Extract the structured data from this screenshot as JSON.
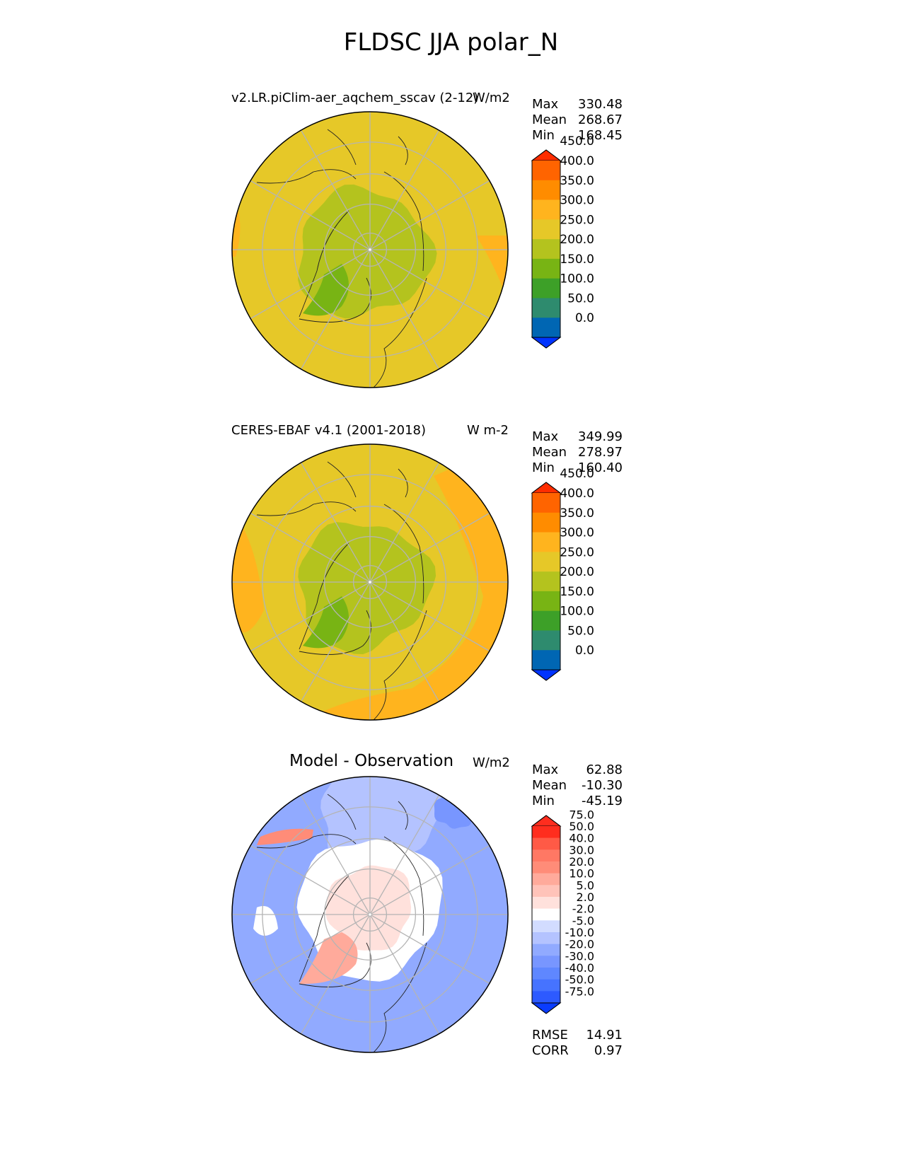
{
  "title": "FLDSC JJA polar_N",
  "stat_labels": {
    "max": "Max",
    "mean": "Mean",
    "min": "Min",
    "rmse": "RMSE",
    "corr": "CORR"
  },
  "panels": [
    {
      "subtitle": "v2.LR.piClim-aer_aqchem_sscav (2-12)",
      "units": "W/m2",
      "stats": {
        "max": "330.48",
        "mean": "268.67",
        "min": "168.45"
      },
      "colorbar": {
        "levels": [
          "0.0",
          "50.0",
          "100.0",
          "150.0",
          "200.0",
          "250.0",
          "300.0",
          "350.0",
          "400.0",
          "450.0"
        ]
      }
    },
    {
      "subtitle": "CERES-EBAF v4.1 (2001-2018)",
      "units": "W m-2",
      "stats": {
        "max": "349.99",
        "mean": "278.97",
        "min": "160.40"
      },
      "colorbar": {
        "levels": [
          "0.0",
          "50.0",
          "100.0",
          "150.0",
          "200.0",
          "250.0",
          "300.0",
          "350.0",
          "400.0",
          "450.0"
        ]
      }
    },
    {
      "subtitle": "Model - Observation",
      "units": "W/m2",
      "stats": {
        "max": "62.88",
        "mean": "-10.30",
        "min": "-45.19"
      },
      "colorbar": {
        "levels": [
          "-75.0",
          "-50.0",
          "-40.0",
          "-30.0",
          "-20.0",
          "-10.0",
          "-5.0",
          "-2.0",
          "2.0",
          "5.0",
          "10.0",
          "20.0",
          "30.0",
          "40.0",
          "50.0",
          "75.0"
        ]
      },
      "rmse": "14.91",
      "corr": "0.97"
    }
  ],
  "colors": {
    "field_bins": [
      "#0033ff",
      "#0066b3",
      "#2e8b6e",
      "#3da028",
      "#78b414",
      "#b4c31e",
      "#e6c828",
      "#ffb41e",
      "#ff8c00",
      "#ff6400",
      "#ff2d00"
    ],
    "diff_bins": [
      "#0a3cff",
      "#2d5aff",
      "#4673ff",
      "#5f87ff",
      "#7896ff",
      "#91aaff",
      "#b4c3ff",
      "#d2dcff",
      "#ffffff",
      "#ffe1dc",
      "#ffc3b9",
      "#ffaa9b",
      "#ff8c78",
      "#ff7864",
      "#ff5a46",
      "#ff2d1e",
      "#ff2d1e"
    ]
  }
}
